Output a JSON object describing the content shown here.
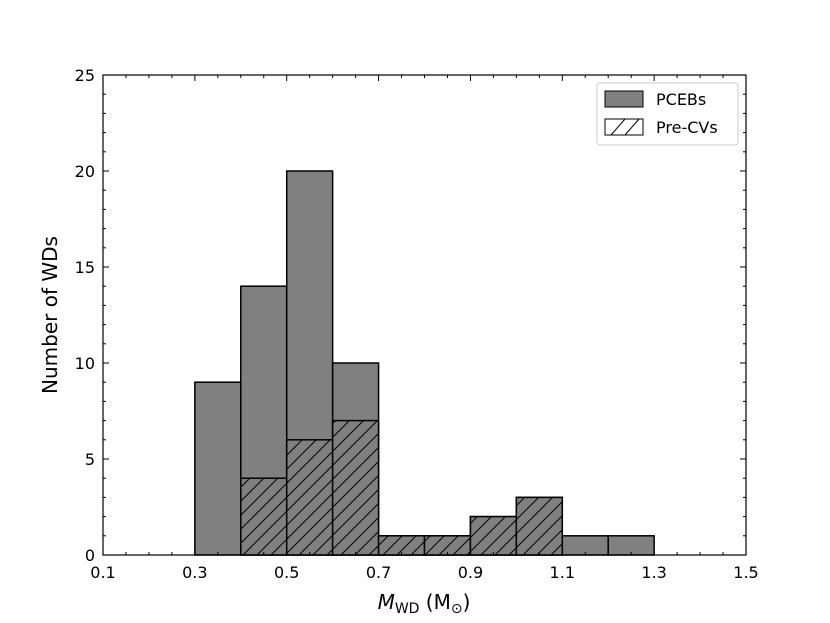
{
  "chart_data": {
    "type": "bar",
    "xlabel_symbol": "M",
    "xlabel_sub": "WD",
    "xlabel_unit_prefix": " (M",
    "xlabel_unit_sub": "⊙",
    "xlabel_unit_suffix": ")",
    "ylabel": "Number of WDs",
    "xlim": [
      0.1,
      1.5
    ],
    "ylim": [
      0,
      25
    ],
    "xticks": [
      0.1,
      0.3,
      0.5,
      0.7,
      0.9,
      1.1,
      1.3,
      1.5
    ],
    "xtick_labels": [
      "0.1",
      "0.3",
      "0.5",
      "0.7",
      "0.9",
      "1.1",
      "1.3",
      "1.5"
    ],
    "yticks": [
      0,
      5,
      10,
      15,
      20,
      25
    ],
    "ytick_labels": [
      "0",
      "5",
      "10",
      "15",
      "20",
      "25"
    ],
    "bin_edges": [
      0.1,
      0.2,
      0.3,
      0.4,
      0.5,
      0.6,
      0.7,
      0.8,
      0.9,
      1.0,
      1.1,
      1.2,
      1.3,
      1.4,
      1.5
    ],
    "legend_position": "top-right",
    "grid": false,
    "series": [
      {
        "name": "PCEBs",
        "style": "solid",
        "color": "#808080",
        "values": [
          0,
          0,
          9,
          14,
          20,
          10,
          1,
          1,
          2,
          3,
          1,
          1,
          0,
          0
        ]
      },
      {
        "name": "Pre-CVs",
        "style": "hatched",
        "color": "#808080",
        "values": [
          0,
          0,
          0,
          4,
          6,
          7,
          1,
          1,
          2,
          3,
          0,
          0,
          0,
          0
        ]
      }
    ]
  }
}
